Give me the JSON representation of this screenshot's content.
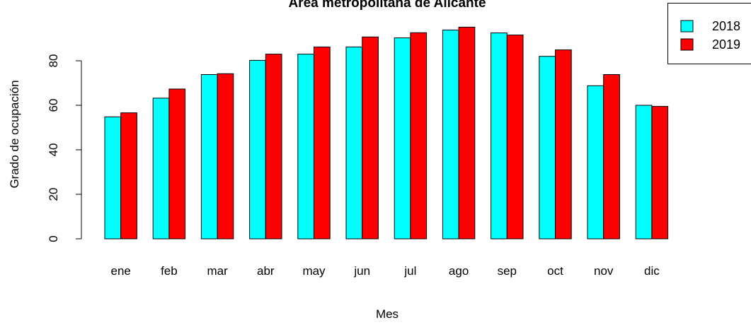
{
  "chart_data": {
    "type": "bar",
    "title": "Área metropolitana de Alicante",
    "xlabel": "Mes",
    "ylabel": "Grado de ocupación",
    "ylim": [
      0,
      100
    ],
    "yticks": [
      0,
      20,
      40,
      60,
      80
    ],
    "grid": false,
    "legend_position": "top-right",
    "categories": [
      "ene",
      "feb",
      "mar",
      "abr",
      "may",
      "jun",
      "jul",
      "ago",
      "sep",
      "oct",
      "nov",
      "dic"
    ],
    "series": [
      {
        "name": "2018",
        "color": "#00FFFF",
        "values": [
          54.8,
          63.2,
          73.8,
          80.2,
          83.0,
          86.2,
          90.3,
          93.8,
          92.5,
          82.0,
          68.8,
          60.0
        ]
      },
      {
        "name": "2019",
        "color": "#FF0000",
        "values": [
          56.6,
          67.3,
          74.2,
          83.0,
          86.2,
          90.7,
          92.6,
          95.1,
          91.6,
          84.9,
          73.8,
          59.5
        ]
      }
    ]
  }
}
